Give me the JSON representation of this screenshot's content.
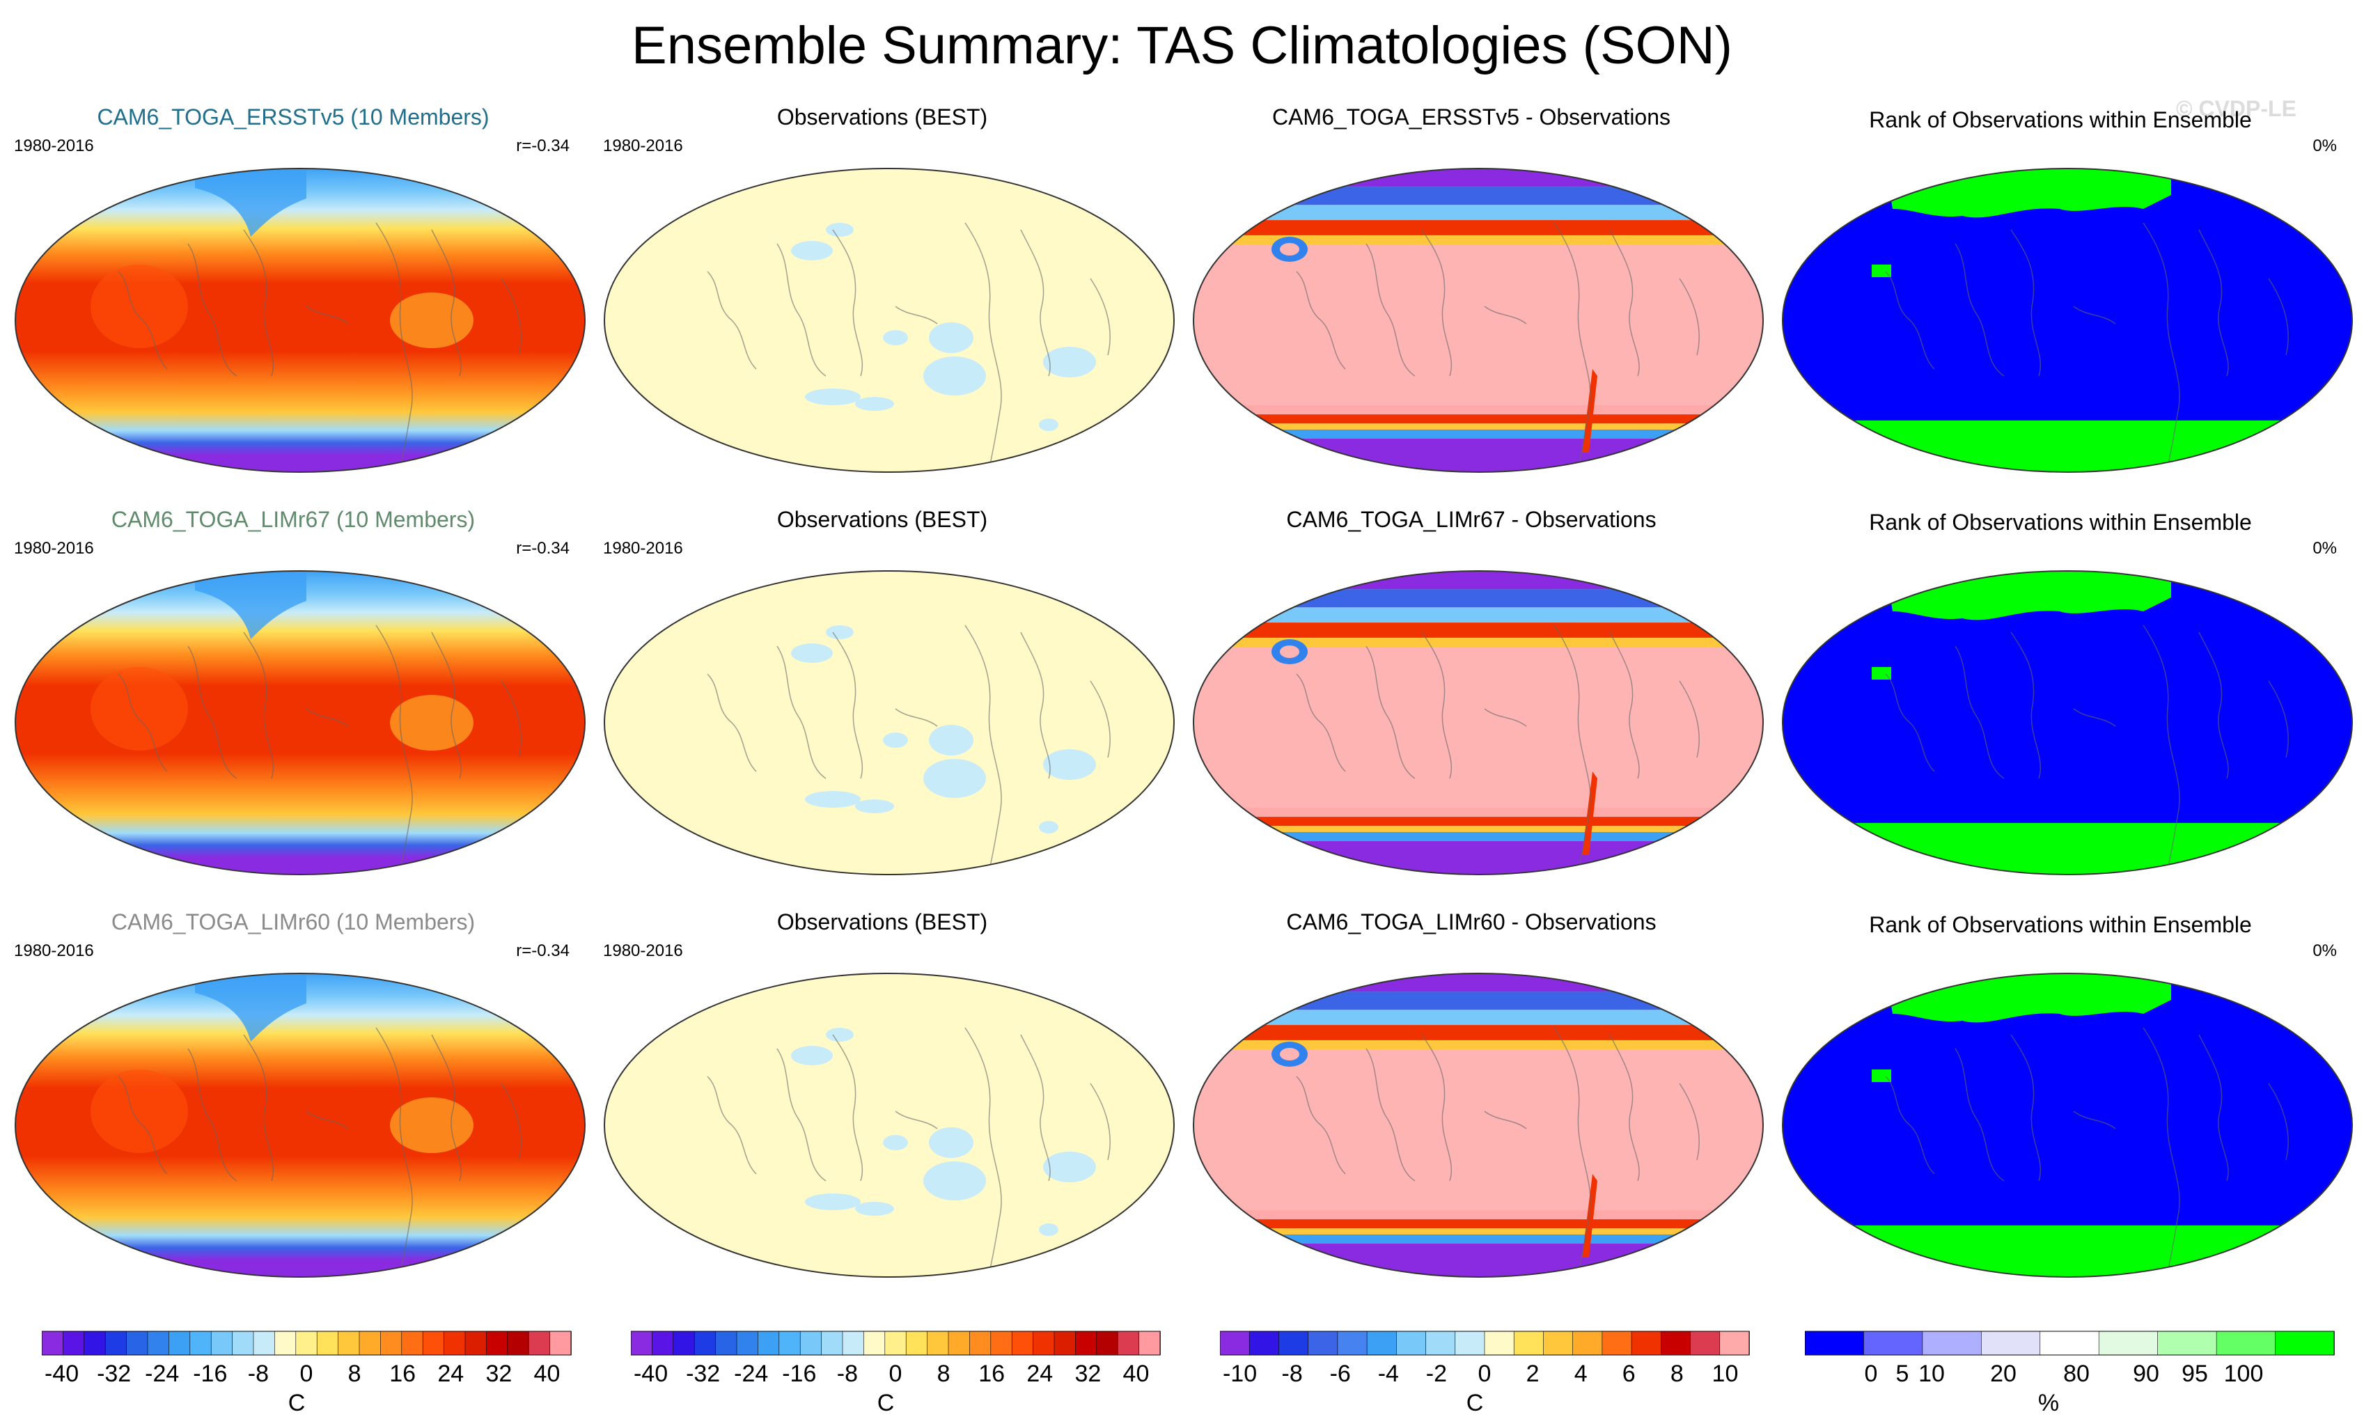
{
  "title": "Ensemble Summary: TAS Climatologies (SON)",
  "watermark": "© CVDP-LE",
  "rows": [
    {
      "model": {
        "title": "CAM6_TOGA_ERSSTv5 (10 Members)",
        "title_color": "#1f6e8c",
        "years": "1980-2016",
        "corr": "r=-0.34"
      },
      "obs": {
        "title": "Observations (BEST)",
        "years": "1980-2016"
      },
      "diff": {
        "title": "CAM6_TOGA_ERSSTv5 - Observations"
      },
      "rank": {
        "title": "Rank of Observations within Ensemble",
        "pct": "0%"
      }
    },
    {
      "model": {
        "title": "CAM6_TOGA_LIMr67 (10 Members)",
        "title_color": "#5f8a6b",
        "years": "1980-2016",
        "corr": "r=-0.34"
      },
      "obs": {
        "title": "Observations (BEST)",
        "years": "1980-2016"
      },
      "diff": {
        "title": "CAM6_TOGA_LIMr67 - Observations"
      },
      "rank": {
        "title": "Rank of Observations within Ensemble",
        "pct": "0%"
      }
    },
    {
      "model": {
        "title": "CAM6_TOGA_LIMr60 (10 Members)",
        "title_color": "#8a8a8a",
        "years": "1980-2016",
        "corr": "r=-0.34"
      },
      "obs": {
        "title": "Observations (BEST)",
        "years": "1980-2016"
      },
      "diff": {
        "title": "CAM6_TOGA_LIMr60 - Observations"
      },
      "rank": {
        "title": "Rank of Observations within Ensemble",
        "pct": "0%"
      }
    }
  ],
  "chart_data": [
    {
      "type": "colorbar",
      "name": "model-climatology",
      "unit": "C",
      "range": [
        -40,
        40
      ],
      "ticks": [
        "-40",
        "-32",
        "-24",
        "-16",
        "-8",
        "0",
        "8",
        "16",
        "24",
        "32",
        "40"
      ],
      "colors": [
        "#8a2be2",
        "#5a14e6",
        "#3214e6",
        "#1e3ce6",
        "#2864e6",
        "#3282ee",
        "#3ca0f5",
        "#50b4fa",
        "#78c8fa",
        "#a0dcfa",
        "#c8ebfa",
        "#fffac8",
        "#fff08c",
        "#ffe15a",
        "#ffc83c",
        "#ffaa28",
        "#ff8c1e",
        "#ff6e14",
        "#ff500a",
        "#f03200",
        "#dc1e00",
        "#c80000",
        "#b40000",
        "#dc3c50",
        "#ff9ba0"
      ]
    },
    {
      "type": "colorbar",
      "name": "observations",
      "unit": "C",
      "range": [
        -40,
        40
      ],
      "ticks": [
        "-40",
        "-32",
        "-24",
        "-16",
        "-8",
        "0",
        "8",
        "16",
        "24",
        "32",
        "40"
      ],
      "colors": [
        "#8a2be2",
        "#5a14e6",
        "#3214e6",
        "#1e3ce6",
        "#2864e6",
        "#3282ee",
        "#3ca0f5",
        "#50b4fa",
        "#78c8fa",
        "#a0dcfa",
        "#c8ebfa",
        "#fffac8",
        "#fff08c",
        "#ffe15a",
        "#ffc83c",
        "#ffaa28",
        "#ff8c1e",
        "#ff6e14",
        "#ff500a",
        "#f03200",
        "#dc1e00",
        "#c80000",
        "#b40000",
        "#dc3c50",
        "#ff9ba0"
      ]
    },
    {
      "type": "colorbar",
      "name": "difference",
      "unit": "C",
      "range": [
        -10,
        10
      ],
      "ticks": [
        "-10",
        "-8",
        "-6",
        "-4",
        "-2",
        "0",
        "2",
        "4",
        "6",
        "8",
        "10"
      ],
      "colors": [
        "#8a2be2",
        "#3214e6",
        "#1e3ce6",
        "#3c64e6",
        "#4682f0",
        "#3ca0f5",
        "#78c8fa",
        "#a0dcfa",
        "#c8ebfa",
        "#fffac8",
        "#ffe15a",
        "#ffc83c",
        "#ffaa28",
        "#ff6e14",
        "#f03200",
        "#c80000",
        "#dc3c50",
        "#ffaaaa"
      ]
    },
    {
      "type": "colorbar",
      "name": "rank",
      "unit": "%",
      "range": [
        0,
        100
      ],
      "ticks": [
        "0",
        "5",
        "10",
        "20",
        "80",
        "90",
        "95",
        "100"
      ],
      "colors": [
        "#0000ff",
        "#6464ff",
        "#afafff",
        "#e1e1fa",
        "#ffffff",
        "#e1fae1",
        "#afffaf",
        "#64ff64",
        "#00ff00"
      ]
    }
  ]
}
